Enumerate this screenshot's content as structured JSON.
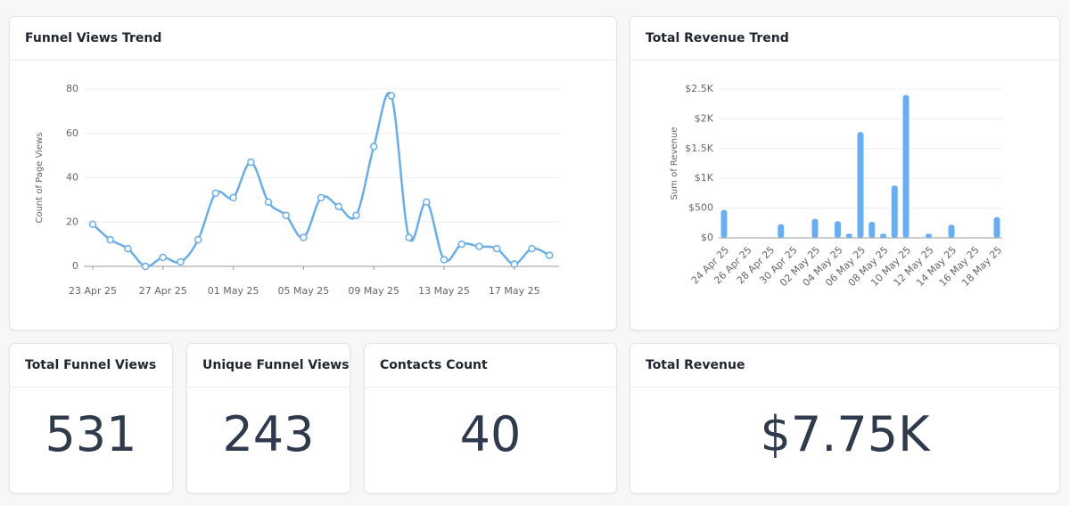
{
  "chart_data": [
    {
      "type": "line",
      "title": "Funnel Views Trend",
      "y_label": "Count of Page Views",
      "color": "#6aaee6",
      "categories": [
        "23 Apr 25",
        null,
        null,
        null,
        "27 Apr 25",
        null,
        null,
        null,
        "01 May 25",
        null,
        null,
        null,
        "05 May 25",
        null,
        null,
        null,
        "09 May 25",
        null,
        null,
        null,
        "13 May 25",
        null,
        null,
        null,
        "17 May 25",
        null,
        null
      ],
      "values": [
        19,
        12,
        8,
        0,
        4,
        2,
        12,
        33,
        31,
        47,
        29,
        23,
        13,
        31,
        27,
        23,
        54,
        77,
        13,
        29,
        3,
        10,
        9,
        8,
        1,
        8,
        5
      ],
      "ylim": [
        0,
        80
      ],
      "yticks": [
        0,
        20,
        40,
        60,
        80
      ],
      "grid": true
    },
    {
      "type": "bar",
      "title": "Total Revenue Trend",
      "y_label": "Sum of Revenue",
      "color": "#68aef0",
      "categories": [
        "24 Apr 25",
        null,
        "26 Apr 25",
        null,
        "28 Apr 25",
        null,
        "30 Apr 25",
        null,
        "02 May 25",
        null,
        "04 May 25",
        null,
        "06 May 25",
        null,
        "08 May 25",
        null,
        "10 May 25",
        null,
        "12 May 25",
        null,
        "14 May 25",
        null,
        "16 May 25",
        null,
        "18 May 25"
      ],
      "values": [
        470,
        0,
        0,
        0,
        0,
        230,
        0,
        0,
        320,
        0,
        280,
        70,
        1780,
        270,
        70,
        880,
        2400,
        0,
        70,
        0,
        220,
        0,
        0,
        0,
        350
      ],
      "ylim": [
        0,
        2500
      ],
      "yticks": [
        {
          "value": 0,
          "label": "$0"
        },
        {
          "value": 500,
          "label": "$500"
        },
        {
          "value": 1000,
          "label": "$1K"
        },
        {
          "value": 1500,
          "label": "$1.5K"
        },
        {
          "value": 2000,
          "label": "$2K"
        },
        {
          "value": 2500,
          "label": "$2.5K"
        }
      ],
      "grid": true
    }
  ],
  "cards": [
    {
      "title": "Total Funnel Views",
      "value": 531
    },
    {
      "title": "Unique Funnel Views",
      "value": 243
    },
    {
      "title": "Contacts Count",
      "value": 40
    },
    {
      "title": "Total Revenue",
      "value": "$7.75K"
    }
  ]
}
